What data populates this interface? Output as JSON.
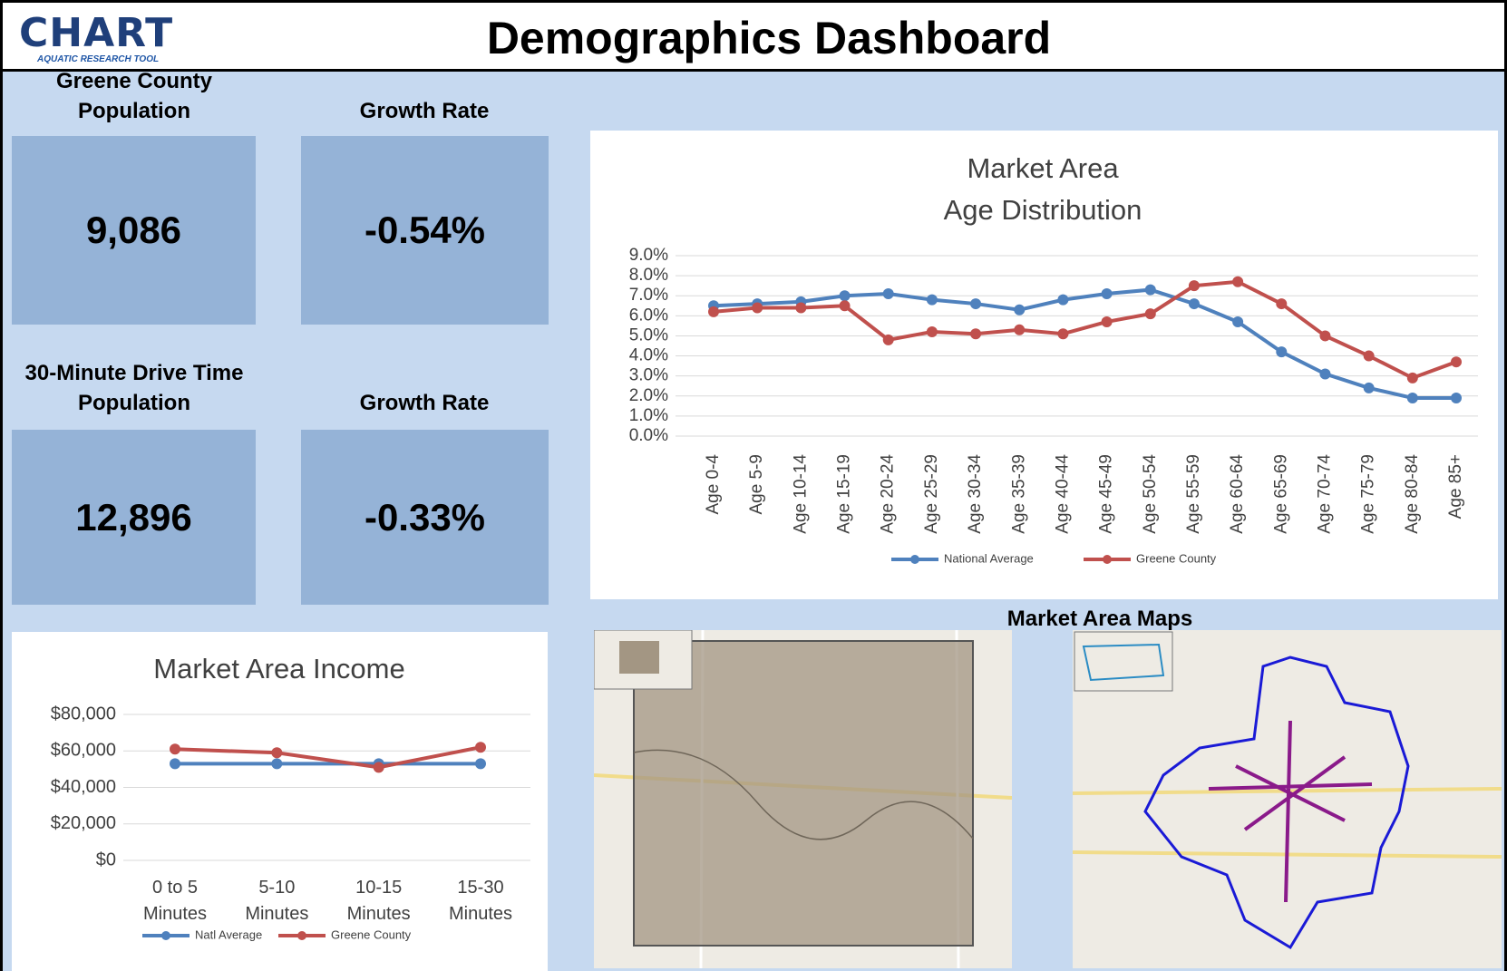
{
  "header": {
    "logo": "CHART",
    "logo_subtitle": "AQUATIC RESEARCH TOOL",
    "title": "Demographics Dashboard"
  },
  "kpis": [
    {
      "label": "Greene County Population",
      "value": "9,086"
    },
    {
      "label": "Growth Rate",
      "value": "-0.54%"
    },
    {
      "label": "30-Minute Drive Time Population",
      "value": "12,896"
    },
    {
      "label": "Growth Rate",
      "value": "-0.33%"
    }
  ],
  "maps_title": "Market Area Maps",
  "chart_data": [
    {
      "type": "line",
      "title": [
        "Market Area",
        "Age Distribution"
      ],
      "categories": [
        "Age 0-4",
        "Age 5-9",
        "Age 10-14",
        "Age 15-19",
        "Age 20-24",
        "Age 25-29",
        "Age 30-34",
        "Age 35-39",
        "Age 40-44",
        "Age 45-49",
        "Age 50-54",
        "Age 55-59",
        "Age 60-64",
        "Age 65-69",
        "Age 70-74",
        "Age 75-79",
        "Age 80-84",
        "Age 85+"
      ],
      "series": [
        {
          "name": "National Average",
          "color": "#4f81bd",
          "values": [
            6.5,
            6.6,
            6.7,
            7.0,
            7.1,
            6.8,
            6.6,
            6.3,
            6.8,
            7.1,
            7.3,
            6.6,
            5.7,
            4.2,
            3.1,
            2.4,
            1.9,
            1.9
          ]
        },
        {
          "name": "Greene County",
          "color": "#c0504d",
          "values": [
            6.2,
            6.4,
            6.4,
            6.5,
            4.8,
            5.2,
            5.1,
            5.3,
            5.1,
            5.7,
            6.1,
            7.5,
            7.7,
            6.6,
            5.0,
            4.0,
            2.9,
            3.7
          ]
        }
      ],
      "ylim": [
        0,
        9
      ],
      "yticks": [
        {
          "value": 0,
          "label": "0.0%"
        },
        {
          "value": 1,
          "label": "1.0%"
        },
        {
          "value": 2,
          "label": "2.0%"
        },
        {
          "value": 3,
          "label": "3.0%"
        },
        {
          "value": 4,
          "label": "4.0%"
        },
        {
          "value": 5,
          "label": "5.0%"
        },
        {
          "value": 6,
          "label": "6.0%"
        },
        {
          "value": 7,
          "label": "7.0%"
        },
        {
          "value": 8,
          "label": "8.0%"
        },
        {
          "value": 9,
          "label": "9.0%"
        }
      ],
      "grid": true,
      "legend": "bottom"
    },
    {
      "type": "line",
      "title": "Market Area Income",
      "categories": [
        "0 to 5 Minutes",
        "5-10 Minutes",
        "10-15 Minutes",
        "15-30 Minutes"
      ],
      "series": [
        {
          "name": "Natl Average",
          "color": "#4f81bd",
          "values": [
            53000,
            53000,
            53000,
            53000
          ]
        },
        {
          "name": "Greene County",
          "color": "#c0504d",
          "values": [
            61000,
            59000,
            51000,
            62000
          ]
        }
      ],
      "ylim": [
        0,
        80000
      ],
      "yticks": [
        {
          "value": 0,
          "label": "$0"
        },
        {
          "value": 20000,
          "label": "$20,000"
        },
        {
          "value": 40000,
          "label": "$40,000"
        },
        {
          "value": 60000,
          "label": "$60,000"
        },
        {
          "value": 80000,
          "label": "$80,000"
        }
      ],
      "grid": true,
      "legend": "bottom"
    }
  ]
}
